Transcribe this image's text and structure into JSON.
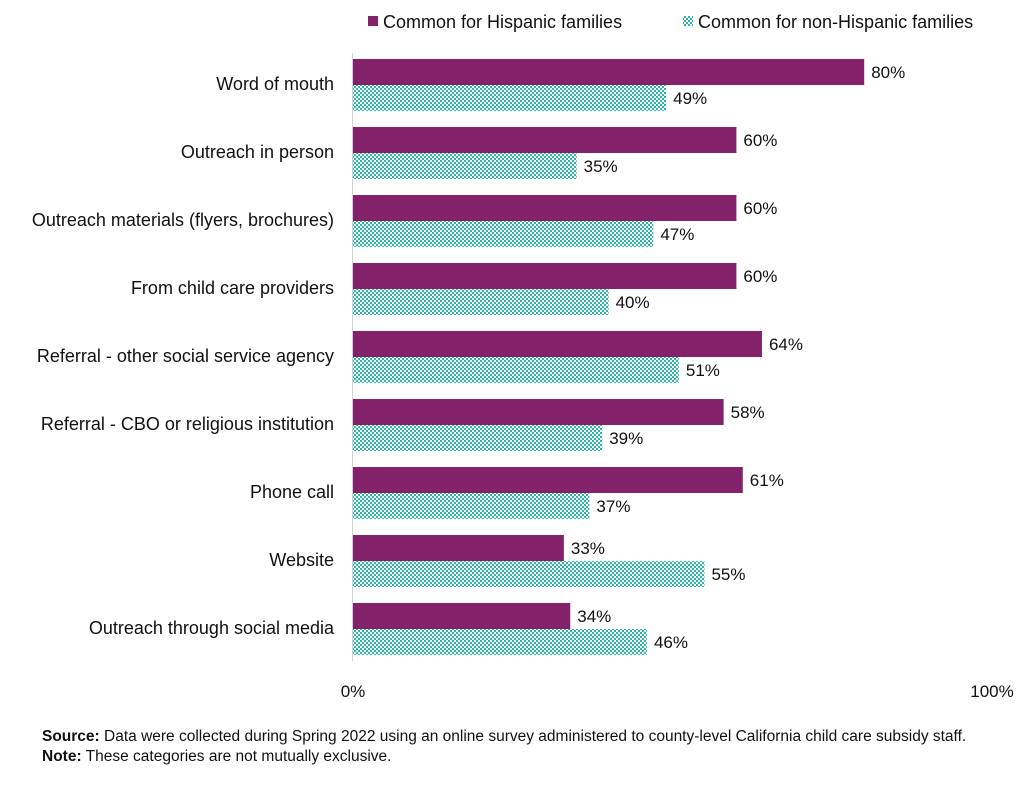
{
  "chart_data": {
    "type": "bar",
    "orientation": "horizontal",
    "categories": [
      "Word of mouth",
      "Outreach in person",
      "Outreach materials (flyers, brochures)",
      "From child care providers",
      "Referral - other social service agency",
      "Referral - CBO or religious institution",
      "Phone call",
      "Website",
      "Outreach through social media"
    ],
    "series": [
      {
        "name": "Common for Hispanic families",
        "color": "#84216b",
        "pattern": "solid",
        "values": [
          80,
          60,
          60,
          60,
          64,
          58,
          61,
          33,
          34
        ]
      },
      {
        "name": "Common for non-Hispanic families",
        "color": "#2bb5a8",
        "pattern": "checker",
        "values": [
          49,
          35,
          47,
          40,
          51,
          39,
          37,
          55,
          46
        ]
      }
    ],
    "value_suffix": "%",
    "xlim": [
      0,
      100
    ],
    "x_ticks": [
      "0%",
      "100%"
    ],
    "legend_position": "top",
    "grid": false
  },
  "footer": {
    "source_label": "Source:",
    "source_text": "Data were collected during Spring 2022 using an online survey administered to county-level California child care subsidy staff.",
    "note_label": "Note:",
    "note_text": "These categories are not mutually exclusive."
  }
}
